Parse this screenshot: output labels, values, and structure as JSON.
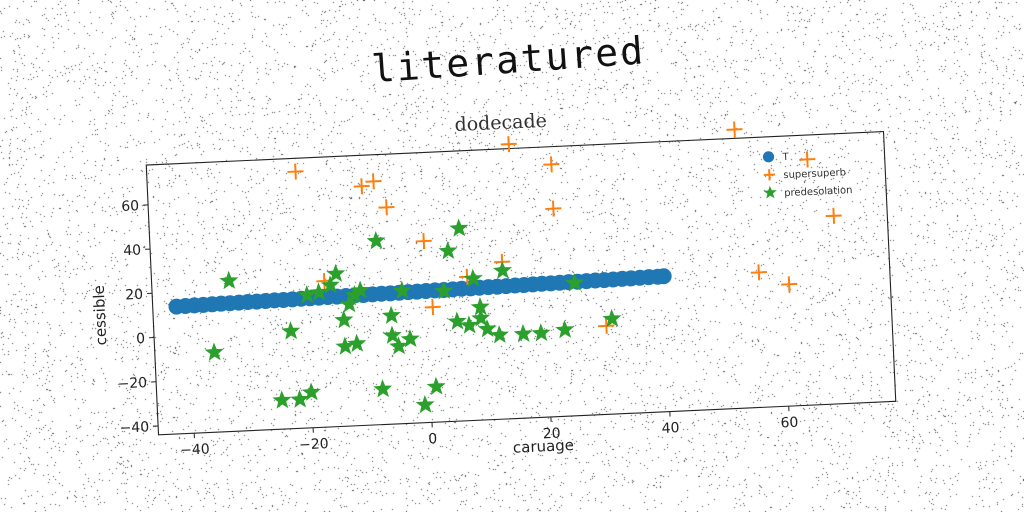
{
  "chart_data": {
    "type": "scatter",
    "title": "literatured",
    "subtitle": "dodecade",
    "xlabel": "caruage",
    "ylabel": "cessible",
    "xlim": [
      -46,
      78
    ],
    "ylim": [
      -44,
      78
    ],
    "xticks": [
      -40,
      -20,
      0,
      20,
      40,
      60
    ],
    "yticks": [
      -40,
      -20,
      0,
      20,
      40,
      60
    ],
    "xtick_labels": [
      "−40",
      "−20",
      "0",
      "20",
      "40",
      "60"
    ],
    "ytick_labels": [
      "−40",
      "−20",
      "0",
      "20",
      "40",
      "60"
    ],
    "grid": false,
    "legend": "top-right",
    "series": [
      {
        "name": "T",
        "marker": "circle",
        "color": "#1f77b4",
        "x": [
          -42,
          -40.5,
          -39,
          -37.5,
          -36,
          -34.5,
          -33,
          -31.5,
          -30,
          -28.5,
          -27,
          -25.5,
          -24,
          -22.5,
          -21,
          -19.5,
          -18,
          -16.5,
          -15,
          -13.5,
          -12,
          -10.5,
          -9,
          -7.5,
          -6,
          -4.5,
          -3,
          -1.5,
          0,
          1.5,
          3,
          4.5,
          6,
          7.5,
          9,
          10.5,
          12,
          13.5,
          15,
          16.5,
          18,
          19.5,
          21,
          22.5,
          24,
          25.5,
          27,
          28.5,
          30,
          31.5,
          33,
          34.5,
          36,
          37.5,
          39,
          40
        ],
        "y": [
          13.5,
          13.6,
          13.7,
          13.7,
          13.8,
          13.9,
          13.9,
          14.0,
          14.1,
          14.1,
          14.2,
          14.3,
          14.3,
          14.4,
          14.5,
          14.5,
          14.6,
          14.7,
          14.7,
          14.8,
          14.9,
          14.9,
          15.0,
          15.1,
          15.1,
          15.2,
          15.3,
          15.3,
          15.4,
          15.5,
          15.5,
          15.6,
          15.7,
          15.7,
          15.8,
          15.9,
          15.9,
          16.0,
          16.1,
          16.1,
          16.2,
          16.3,
          16.3,
          16.4,
          16.5,
          16.5,
          16.6,
          16.7,
          16.7,
          16.8,
          16.9,
          16.9,
          17.0,
          17.1,
          17.1,
          17.2
        ]
      },
      {
        "name": "supersuperb",
        "marker": "plus",
        "color": "#ff7f0e",
        "x": [
          -21,
          -10,
          -8,
          -6,
          0,
          1,
          7,
          13,
          15,
          22,
          22,
          30,
          53,
          56,
          61,
          65,
          69,
          -17
        ],
        "y": [
          72,
          64,
          66,
          54,
          38,
          8,
          21,
          27,
          80,
          70,
          50,
          -4,
          82,
          17,
          11,
          67,
          41,
          22
        ]
      },
      {
        "name": "predesolation",
        "marker": "star",
        "color": "#2ca02c",
        "x": [
          -33,
          -36,
          -23,
          -25,
          -22,
          -20,
          -20,
          -18,
          -16,
          -15,
          -14,
          -13,
          -12,
          -14,
          -12,
          -11,
          -8,
          -8,
          -6,
          -6,
          -5,
          -4,
          -3,
          -1,
          1,
          3,
          4,
          5,
          6,
          7,
          8,
          9,
          9,
          10,
          12,
          13,
          16,
          19,
          23,
          25,
          31
        ],
        "y": [
          24,
          -8,
          0,
          -31,
          -31,
          -28,
          16,
          17,
          20,
          25,
          4,
          11,
          -7,
          -8,
          15,
          17,
          39,
          -28,
          5,
          -4,
          -9,
          16,
          -6,
          -36,
          -28,
          15,
          33,
          1,
          43,
          -1,
          20,
          2,
          7,
          -3,
          -6,
          23,
          -6,
          -6,
          -5,
          16,
          -1
        ]
      }
    ]
  }
}
